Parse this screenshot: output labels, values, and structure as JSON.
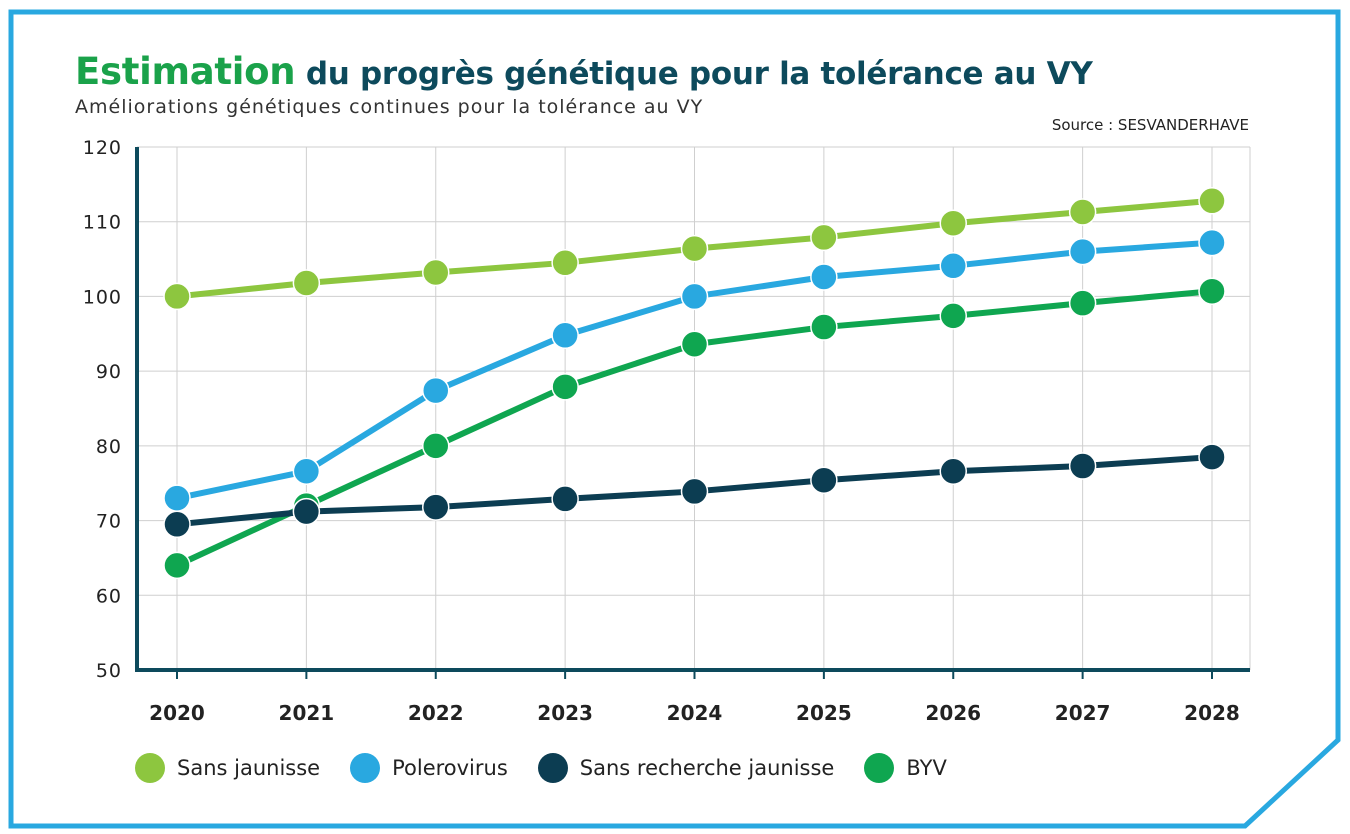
{
  "header": {
    "title_highlight": "Estimation",
    "title_rest": "du progrès génétique pour la tolérance au VY",
    "subtitle": "Améliorations génétiques continues pour la tolérance au VY",
    "source": "Source : SESVANDERHAVE"
  },
  "colors": {
    "frame": "#29a8e0",
    "title_highlight": "#1aa24a",
    "title": "#0d4a5c",
    "axis": "#0d4a5c",
    "grid": "#cccccc"
  },
  "chart_data": {
    "type": "line",
    "title": "Estimation du progrès génétique pour la tolérance au VY",
    "x": [
      "2020",
      "2021",
      "2022",
      "2023",
      "2024",
      "2025",
      "2026",
      "2027",
      "2028"
    ],
    "ylim": [
      50,
      120
    ],
    "yticks": [
      "50",
      "60",
      "70",
      "80",
      "90",
      "100",
      "110",
      "120"
    ],
    "grid": true,
    "legend_position": "bottom",
    "series": [
      {
        "name": "Sans jaunisse",
        "color": "#8dc63f",
        "values": [
          100,
          101.8,
          103.2,
          104.5,
          106.4,
          107.9,
          109.8,
          111.3,
          112.8
        ]
      },
      {
        "name": "Polerovirus",
        "color": "#29a8e0",
        "values": [
          73,
          76.6,
          87.4,
          94.8,
          100,
          102.6,
          104.1,
          106,
          107.2
        ]
      },
      {
        "name": "Sans recherche jaunisse",
        "color": "#0c3d52",
        "values": [
          69.5,
          71.2,
          71.8,
          72.9,
          73.9,
          75.4,
          76.6,
          77.3,
          78.5
        ]
      },
      {
        "name": "BYV",
        "color": "#0fa650",
        "values": [
          64,
          72,
          80,
          87.9,
          93.6,
          95.9,
          97.4,
          99.1,
          100.7
        ]
      }
    ]
  }
}
